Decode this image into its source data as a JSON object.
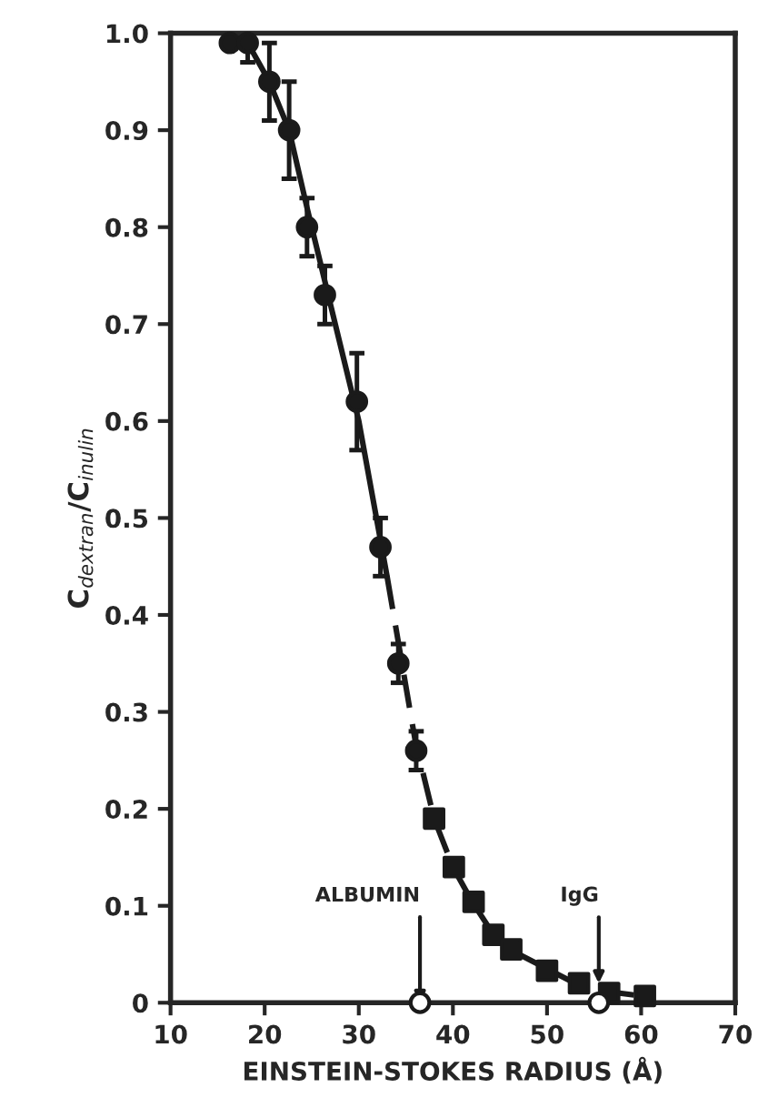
{
  "chart_data": {
    "type": "scatter",
    "xlabel": "EINSTEIN-STOKES RADIUS (Å)",
    "ylabel": "C$_{dextran}$/C$_{inulin}$",
    "xlim": [
      10,
      70
    ],
    "xticks": [
      10,
      20,
      30,
      40,
      50,
      60,
      70
    ],
    "ylim": [
      0,
      1.0
    ],
    "yticks": [
      0,
      0.1,
      0.2,
      0.3,
      0.4,
      0.5,
      0.6,
      0.7,
      0.8,
      0.9,
      {
        "value": 1,
        "label": "1.0"
      }
    ],
    "grid": false,
    "legend": false,
    "series": [
      {
        "type": "line",
        "line_style": "solid",
        "marker": "none",
        "color": "#1a1a1a",
        "x": [
          16.3,
          18.2,
          20.5,
          22.6,
          24.5,
          27,
          30,
          33
        ],
        "values": [
          1.0,
          0.99,
          0.95,
          0.9,
          0.82,
          0.72,
          0.6,
          0.44
        ]
      },
      {
        "type": "line",
        "line_style": "dashed",
        "marker": "none",
        "color": "#1a1a1a",
        "x": [
          33,
          36,
          38,
          40,
          42,
          44,
          46,
          50,
          53,
          56,
          60
        ],
        "values": [
          0.44,
          0.27,
          0.19,
          0.14,
          0.105,
          0.075,
          0.055,
          0.035,
          0.02,
          0.012,
          0.007
        ]
      },
      {
        "marker": "circle",
        "color": "#1a1a1a",
        "x": [
          16.3,
          18.2,
          20.5,
          22.6,
          24.5,
          26.4,
          29.8,
          32.3,
          34.2,
          36.1
        ],
        "values": [
          0.99,
          0.99,
          0.95,
          0.9,
          0.8,
          0.73,
          0.62,
          0.47,
          0.35,
          0.26
        ],
        "errors": [
          null,
          0.02,
          0.04,
          0.05,
          0.03,
          0.03,
          0.05,
          0.03,
          0.02,
          0.02
        ]
      },
      {
        "marker": "square",
        "color": "#1a1a1a",
        "x": [
          38.0,
          40.1,
          42.2,
          44.3,
          46.2,
          50.0,
          53.4,
          56.6,
          60.4
        ],
        "values": [
          0.19,
          0.14,
          0.104,
          0.07,
          0.055,
          0.033,
          0.02,
          0.01,
          0.007
        ]
      },
      {
        "marker": "circle",
        "color": "#ffffff",
        "x": [
          36.5,
          55.5
        ],
        "values": [
          0,
          0
        ]
      }
    ],
    "annotations": [
      {
        "text": "ALBUMIN",
        "x": 36.5,
        "y": 0
      },
      {
        "text": "IgG",
        "x": 55.5,
        "y": 0.02
      }
    ]
  }
}
